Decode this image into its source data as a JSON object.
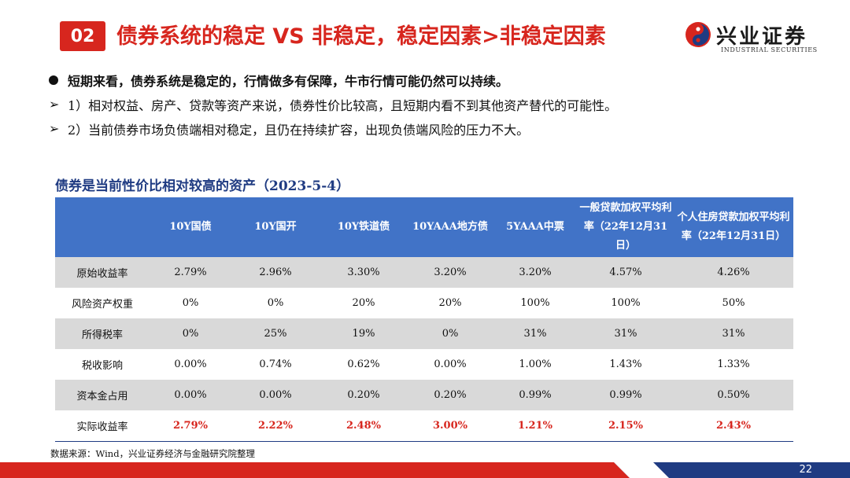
{
  "header": {
    "section_number": "02",
    "title": "债券系统的稳定 VS 非稳定，稳定因素>非稳定因素",
    "logo_cn": "兴业证券",
    "logo_en": "INDUSTRIAL SECURITIES"
  },
  "bullets": [
    {
      "marker": "●",
      "text": "短期来看，债券系统是稳定的，行情做多有保障，牛市行情可能仍然可以持续。"
    },
    {
      "marker": "➢",
      "text": "1）相对权益、房产、贷款等资产来说，债券性价比较高，且短期内看不到其他资产替代的可能性。"
    },
    {
      "marker": "➢",
      "text": "2）当前债券市场负债端相对稳定，且仍在持续扩容，出现负债端风险的压力不大。"
    }
  ],
  "table_title": "债券是当前性价比相对较高的资产（2023-5-4）",
  "table": {
    "columns": [
      "",
      "10Y国债",
      "10Y国开",
      "10Y铁道债",
      "10YAAA地方债",
      "5YAAA中票",
      "一般贷款加权平均利率（22年12月31日）",
      "个人住房贷款加权平均利率（22年12月31日）"
    ],
    "rows": [
      {
        "label": "原始收益率",
        "values": [
          "2.79%",
          "2.96%",
          "3.30%",
          "3.20%",
          "3.20%",
          "4.57%",
          "4.26%"
        ]
      },
      {
        "label": "风险资产权重",
        "values": [
          "0%",
          "0%",
          "20%",
          "20%",
          "100%",
          "100%",
          "50%"
        ]
      },
      {
        "label": "所得税率",
        "values": [
          "0%",
          "25%",
          "19%",
          "0%",
          "31%",
          "31%",
          "31%"
        ]
      },
      {
        "label": "税收影响",
        "values": [
          "0.00%",
          "0.74%",
          "0.62%",
          "0.00%",
          "1.00%",
          "1.43%",
          "1.33%"
        ]
      },
      {
        "label": "资本金占用",
        "values": [
          "0.00%",
          "0.00%",
          "0.20%",
          "0.20%",
          "0.99%",
          "0.99%",
          "0.50%"
        ]
      },
      {
        "label": "实际收益率",
        "values": [
          "2.79%",
          "2.22%",
          "2.48%",
          "3.00%",
          "1.21%",
          "2.15%",
          "2.43%"
        ]
      }
    ]
  },
  "source": "数据来源：Wind，兴业证券经济与金融研究院整理",
  "page_number": "22",
  "colors": {
    "brand_red": "#d7261e",
    "header_blue": "#4173c7",
    "footer_navy": "#1f3b82"
  }
}
